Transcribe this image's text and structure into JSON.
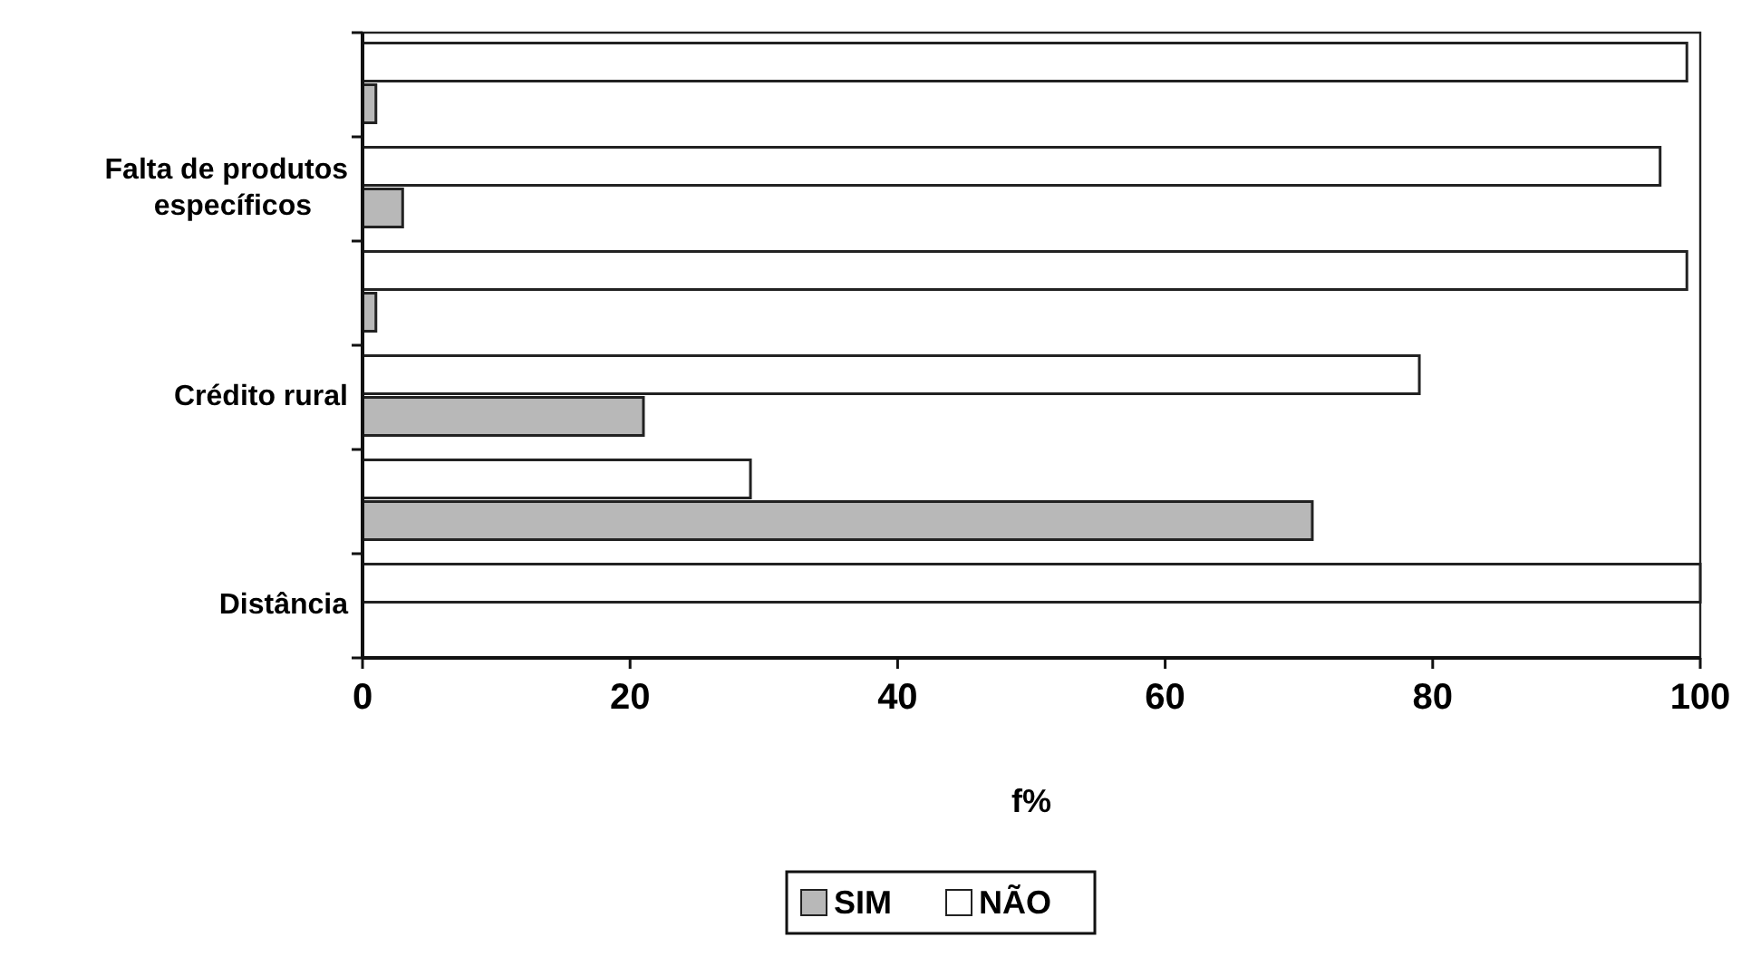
{
  "chart_data": {
    "type": "bar",
    "orientation": "horizontal",
    "xlabel": "f%",
    "categories": [
      null,
      "Falta de produtos específicos",
      null,
      "Crédito rural",
      null,
      "Distância"
    ],
    "series": [
      {
        "name": "SIM",
        "color": "#b8b8b8",
        "values": [
          1,
          3,
          1,
          21,
          71,
          0
        ]
      },
      {
        "name": "NÃO",
        "color": "#ffffff",
        "values": [
          99,
          97,
          99,
          79,
          29,
          100
        ]
      }
    ],
    "xlim": [
      0,
      100
    ],
    "xticks": [
      0,
      20,
      40,
      60,
      80,
      100
    ],
    "legend": "bottom",
    "grid": false
  }
}
